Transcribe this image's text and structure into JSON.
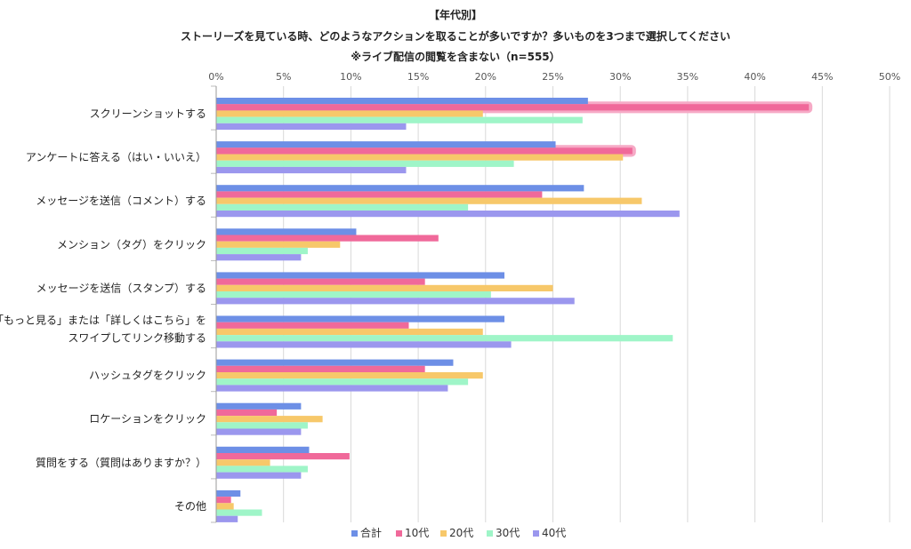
{
  "chart_data": {
    "type": "bar",
    "orientation": "horizontal",
    "title": "【年代別】",
    "subtitle": "ストーリーズを見ている時、どのようなアクションを取ることが多いですか？多いものを3つまで選択してください",
    "note": "※ライブ配信の閲覧を含まない（n=555）",
    "xlim": [
      0,
      50
    ],
    "x_ticks": [
      "0%",
      "5%",
      "10%",
      "15%",
      "20%",
      "25%",
      "30%",
      "35%",
      "40%",
      "45%",
      "50%"
    ],
    "grid": true,
    "legend_position": "bottom",
    "categories": [
      "スクリーンショットする",
      "アンケートに答える（はい・いいえ）",
      "メッセージを送信（コメント）する",
      "メンション（タグ）をクリック",
      "メッセージを送信（スタンプ）する",
      "「もっと見る」または「詳しくはこちら」を|スワイプしてリンク移動する",
      "ハッシュタグをクリック",
      "ロケーションをクリック",
      "質問をする（質問はありますか？）",
      "その他"
    ],
    "series": [
      {
        "name": "合計",
        "color": "#6d8fe6",
        "values": [
          27.6,
          25.2,
          27.3,
          10.4,
          21.4,
          21.4,
          17.6,
          6.3,
          6.9,
          1.8
        ]
      },
      {
        "name": "10代",
        "color": "#f0699a",
        "values": [
          44.0,
          30.9,
          24.2,
          16.5,
          15.5,
          14.3,
          15.5,
          4.5,
          9.9,
          1.1
        ]
      },
      {
        "name": "20代",
        "color": "#f7c86a",
        "values": [
          19.8,
          30.2,
          31.6,
          9.2,
          25.0,
          19.8,
          19.8,
          7.9,
          4.0,
          1.3
        ]
      },
      {
        "name": "30代",
        "color": "#9ff5c8",
        "values": [
          27.2,
          22.1,
          18.7,
          6.8,
          20.4,
          33.9,
          18.7,
          6.8,
          6.8,
          3.4
        ]
      },
      {
        "name": "40代",
        "color": "#9b97ee",
        "values": [
          14.1,
          14.1,
          34.4,
          6.3,
          26.6,
          21.9,
          17.2,
          6.3,
          6.3,
          1.6
        ]
      }
    ],
    "highlights": [
      {
        "category_index": 0,
        "series_index": 1
      },
      {
        "category_index": 1,
        "series_index": 1
      }
    ],
    "highlight_color": "#f6aac6"
  }
}
